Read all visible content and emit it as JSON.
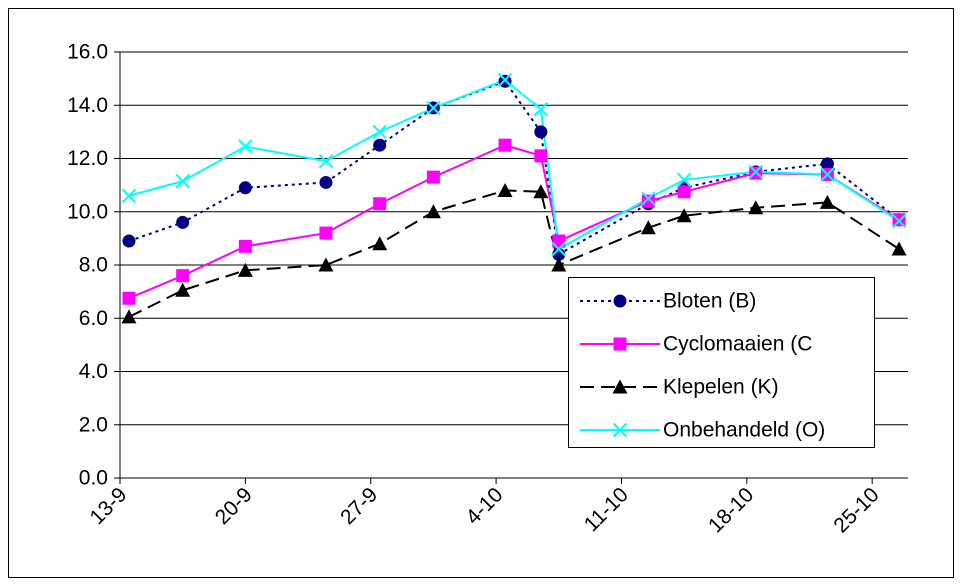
{
  "chart_data": {
    "type": "line",
    "x": [
      0.5,
      3.5,
      7,
      11.5,
      14.5,
      17.5,
      21.5,
      23.5,
      24.5,
      29.5,
      31.5,
      35.5,
      39.5,
      43.5
    ],
    "xlim": [
      0,
      44
    ],
    "xticks": [
      {
        "value": 0,
        "label": "13-9"
      },
      {
        "value": 7,
        "label": "20-9"
      },
      {
        "value": 14,
        "label": "27-9"
      },
      {
        "value": 21,
        "label": "4-10"
      },
      {
        "value": 28,
        "label": "11-10"
      },
      {
        "value": 35,
        "label": "18-10"
      },
      {
        "value": 42,
        "label": "25-10"
      }
    ],
    "ylim": [
      0,
      16
    ],
    "yticks": [
      {
        "value": 0,
        "label": "0.0"
      },
      {
        "value": 2,
        "label": "2.0"
      },
      {
        "value": 4,
        "label": "4.0"
      },
      {
        "value": 6,
        "label": "6.0"
      },
      {
        "value": 8,
        "label": "8.0"
      },
      {
        "value": 10,
        "label": "10.0"
      },
      {
        "value": 12,
        "label": "12.0"
      },
      {
        "value": 14,
        "label": "14.0"
      },
      {
        "value": 16,
        "label": "16.0"
      }
    ],
    "grid": true,
    "series": [
      {
        "name": "Bloten (B)",
        "color": "#000080",
        "marker": "circle",
        "dash": "dotted",
        "values": [
          8.9,
          9.6,
          10.9,
          11.1,
          12.5,
          13.9,
          14.9,
          13.0,
          8.4,
          10.3,
          10.9,
          11.5,
          11.8,
          9.7
        ]
      },
      {
        "name": "Cyclomaaien (C",
        "color": "#ff00ff",
        "marker": "square",
        "dash": "solid",
        "values": [
          6.75,
          7.6,
          8.7,
          9.2,
          10.3,
          11.3,
          12.5,
          12.1,
          8.9,
          10.4,
          10.75,
          11.45,
          11.4,
          9.7
        ]
      },
      {
        "name": "Klepelen (K)",
        "color": "#000000",
        "marker": "triangle",
        "dash": "dashed",
        "values": [
          6.05,
          7.05,
          7.8,
          8.0,
          8.8,
          10.0,
          10.8,
          10.75,
          8.0,
          9.4,
          9.85,
          10.15,
          10.35,
          8.6
        ]
      },
      {
        "name": "Onbehandeld (O)",
        "color": "#00ffff",
        "marker": "x",
        "dash": "solid",
        "values": [
          10.6,
          11.15,
          12.45,
          11.9,
          13.0,
          13.9,
          14.95,
          13.85,
          8.6,
          10.5,
          11.2,
          11.5,
          11.4,
          9.65
        ]
      }
    ]
  }
}
